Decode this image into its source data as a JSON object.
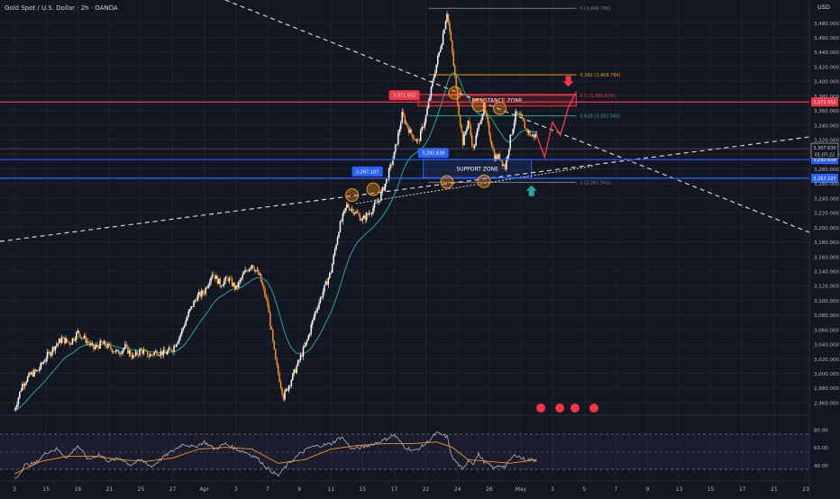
{
  "header": {
    "symbol_title": "Gold Spot / U.S. Dollar · 2h · OANDA",
    "currency": "USD"
  },
  "colors": {
    "background": "#131722",
    "up": "#ffffff",
    "down": "#f7931a",
    "ema": "#26a69a",
    "resistance": "#f23645",
    "support": "#2962ff",
    "rsi": "#b2b5be",
    "rsi_ma": "#f7931a",
    "fib_0": "#787b86",
    "fib_0382": "#f7931a",
    "fib_05": "#f23645",
    "fib_0618": "#26a69a",
    "fib_1": "#787b86"
  },
  "chart_data": [
    {
      "type": "candlestick",
      "price_axis": {
        "ticks": [
          3480,
          3460,
          3440,
          3420,
          3400,
          3380,
          3360,
          3340,
          3320,
          3300,
          3280,
          3260,
          3240,
          3220,
          3200,
          3180,
          3160,
          3140,
          3120,
          3100,
          3080,
          3060,
          3040,
          3020,
          3000,
          2980,
          2960
        ],
        "tick_labels": [
          "3,480.000",
          "3,460.000",
          "3,440.000",
          "3,420.000",
          "3,400.000",
          "3,380.000",
          "3,360.000",
          "3,340.000",
          "3,320.000",
          "3,300.000",
          "3,280.000",
          "3,260.000",
          "3,240.000",
          "3,220.000",
          "3,200.000",
          "3,180.000",
          "3,160.000",
          "3,140.000",
          "3,120.000",
          "3,100.000",
          "3,080.000",
          "3,060.000",
          "3,040.000",
          "3,020.000",
          "3,000.000",
          "2,980.000",
          "2,960.000"
        ],
        "ylim": [
          2955,
          3505
        ]
      },
      "time_axis": {
        "labels": [
          "3",
          "15",
          "19",
          "21",
          "25",
          "27",
          "Apr",
          "3",
          "7",
          "9",
          "11",
          "15",
          "17",
          "22",
          "24",
          "26",
          "May",
          "3",
          "5",
          "7",
          "9",
          "13",
          "15",
          "17",
          "21",
          "23"
        ],
        "positions": [
          0,
          12,
          24,
          36,
          48,
          60,
          72,
          84,
          96,
          108,
          120,
          132,
          144,
          156,
          168,
          180,
          192,
          204,
          216,
          228,
          240,
          252,
          264,
          276,
          288,
          300
        ],
        "xlim": [
          0,
          300
        ]
      },
      "candles": {
        "anchors": [
          [
            0,
            2950
          ],
          [
            3,
            2985
          ],
          [
            6,
            2998
          ],
          [
            9,
            3004
          ],
          [
            12,
            3022
          ],
          [
            15,
            3036
          ],
          [
            18,
            3047
          ],
          [
            21,
            3042
          ],
          [
            24,
            3056
          ],
          [
            27,
            3046
          ],
          [
            30,
            3034
          ],
          [
            33,
            3041
          ],
          [
            36,
            3036
          ],
          [
            39,
            3028
          ],
          [
            42,
            3036
          ],
          [
            45,
            3022
          ],
          [
            48,
            3032
          ],
          [
            51,
            3024
          ],
          [
            54,
            3030
          ],
          [
            57,
            3027
          ],
          [
            60,
            3034
          ],
          [
            63,
            3054
          ],
          [
            66,
            3082
          ],
          [
            69,
            3104
          ],
          [
            72,
            3112
          ],
          [
            75,
            3138
          ],
          [
            78,
            3122
          ],
          [
            81,
            3130
          ],
          [
            84,
            3116
          ],
          [
            87,
            3136
          ],
          [
            90,
            3150
          ],
          [
            93,
            3132
          ],
          [
            96,
            3094
          ],
          [
            99,
            3016
          ],
          [
            102,
            2968
          ],
          [
            105,
            2992
          ],
          [
            108,
            3018
          ],
          [
            111,
            3045
          ],
          [
            114,
            3084
          ],
          [
            117,
            3112
          ],
          [
            120,
            3140
          ],
          [
            123,
            3198
          ],
          [
            126,
            3230
          ],
          [
            129,
            3222
          ],
          [
            132,
            3210
          ],
          [
            135,
            3222
          ],
          [
            138,
            3236
          ],
          [
            141,
            3264
          ],
          [
            144,
            3300
          ],
          [
            147,
            3354
          ],
          [
            150,
            3330
          ],
          [
            153,
            3316
          ],
          [
            156,
            3352
          ],
          [
            159,
            3407
          ],
          [
            162,
            3455
          ],
          [
            164,
            3495
          ],
          [
            166,
            3438
          ],
          [
            168,
            3372
          ],
          [
            170,
            3316
          ],
          [
            172,
            3346
          ],
          [
            174,
            3306
          ],
          [
            176,
            3340
          ],
          [
            178,
            3364
          ],
          [
            180,
            3330
          ],
          [
            182,
            3296
          ],
          [
            184,
            3296
          ],
          [
            186,
            3282
          ],
          [
            188,
            3322
          ],
          [
            190,
            3354
          ],
          [
            192,
            3350
          ],
          [
            194,
            3334
          ],
          [
            196,
            3325
          ],
          [
            198,
            3326
          ]
        ]
      },
      "current_price_label": "3,307.630",
      "countdown_label": "01:07:22",
      "levels": [
        {
          "name": "resistance",
          "price": 3371.552,
          "label": "3,371.552"
        },
        {
          "name": "support-upper",
          "price": 3292.638,
          "label": "3,292.638"
        },
        {
          "name": "support-lower",
          "price": 3267.107,
          "label": "3,267.107"
        }
      ],
      "fibonacci": [
        {
          "ratio_label": "0 (3,499.786)",
          "price": 3499.786
        },
        {
          "ratio_label": "0.382 (3,408.784)",
          "price": 3408.784
        },
        {
          "ratio_label": "0.5 (3,380.674)",
          "price": 3380.674
        },
        {
          "ratio_label": "0.618 (3,352.565)",
          "price": 3352.565
        },
        {
          "ratio_label": "1 (3,261.561)",
          "price": 3261.561
        }
      ],
      "zones": [
        {
          "name": "resistance-zone",
          "label": "RESISTANCE ZONE",
          "price_top": 3382,
          "price_bottom": 3366
        },
        {
          "name": "support-zone",
          "label": "SUPPORT ZONE",
          "price_top": 3293,
          "price_bottom": 3268
        }
      ],
      "projection_path": [
        [
          198,
          3326
        ],
        [
          201,
          3296
        ],
        [
          204,
          3344
        ],
        [
          207,
          3326
        ],
        [
          210,
          3364
        ],
        [
          213,
          3386
        ]
      ]
    },
    {
      "type": "line",
      "name": "RSI",
      "ticks": [
        80,
        60,
        40
      ],
      "tick_labels": [
        "80.00",
        "60.00",
        "40.00"
      ],
      "ylim": [
        25,
        85
      ],
      "anchors": [
        [
          0,
          22
        ],
        [
          4,
          40
        ],
        [
          8,
          42
        ],
        [
          12,
          54
        ],
        [
          16,
          58
        ],
        [
          20,
          48
        ],
        [
          24,
          62
        ],
        [
          28,
          46
        ],
        [
          32,
          52
        ],
        [
          36,
          44
        ],
        [
          40,
          48
        ],
        [
          44,
          40
        ],
        [
          48,
          46
        ],
        [
          52,
          38
        ],
        [
          56,
          48
        ],
        [
          60,
          56
        ],
        [
          64,
          64
        ],
        [
          68,
          60
        ],
        [
          72,
          66
        ],
        [
          76,
          58
        ],
        [
          80,
          64
        ],
        [
          84,
          58
        ],
        [
          88,
          54
        ],
        [
          92,
          48
        ],
        [
          96,
          36
        ],
        [
          100,
          28
        ],
        [
          104,
          42
        ],
        [
          108,
          52
        ],
        [
          112,
          60
        ],
        [
          116,
          62
        ],
        [
          120,
          64
        ],
        [
          124,
          72
        ],
        [
          128,
          58
        ],
        [
          132,
          60
        ],
        [
          136,
          64
        ],
        [
          140,
          68
        ],
        [
          144,
          74
        ],
        [
          148,
          60
        ],
        [
          152,
          56
        ],
        [
          156,
          64
        ],
        [
          160,
          76
        ],
        [
          164,
          72
        ],
        [
          166,
          48
        ],
        [
          168,
          42
        ],
        [
          170,
          34
        ],
        [
          172,
          46
        ],
        [
          174,
          42
        ],
        [
          176,
          52
        ],
        [
          178,
          44
        ],
        [
          180,
          40
        ],
        [
          182,
          36
        ],
        [
          184,
          40
        ],
        [
          186,
          38
        ],
        [
          188,
          46
        ],
        [
          190,
          52
        ],
        [
          192,
          48
        ],
        [
          194,
          46
        ],
        [
          196,
          46
        ],
        [
          198,
          45
        ]
      ],
      "ma_anchors": [
        [
          0,
          30
        ],
        [
          10,
          44
        ],
        [
          20,
          50
        ],
        [
          30,
          50
        ],
        [
          40,
          46
        ],
        [
          50,
          44
        ],
        [
          60,
          48
        ],
        [
          70,
          58
        ],
        [
          80,
          60
        ],
        [
          90,
          58
        ],
        [
          100,
          42
        ],
        [
          110,
          46
        ],
        [
          120,
          58
        ],
        [
          130,
          62
        ],
        [
          140,
          64
        ],
        [
          150,
          64
        ],
        [
          160,
          66
        ],
        [
          166,
          60
        ],
        [
          172,
          46
        ],
        [
          180,
          44
        ],
        [
          188,
          42
        ],
        [
          198,
          46
        ]
      ]
    }
  ]
}
